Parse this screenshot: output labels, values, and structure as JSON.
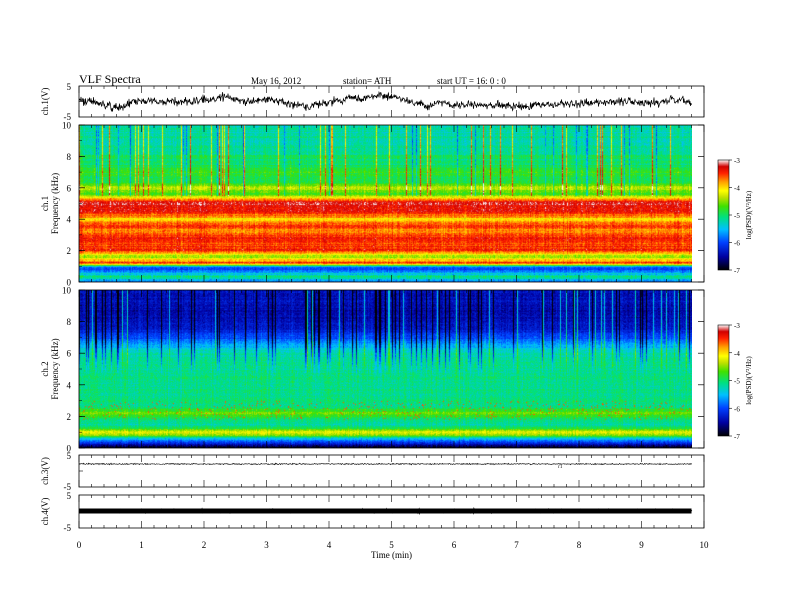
{
  "header": {
    "title": "VLF  Spectra",
    "date": "May 16, 2012",
    "station": "station= ATH",
    "start": "start  UT  =    16: 0  : 0"
  },
  "colors": {
    "colormap": [
      "#000000",
      "#0000a0",
      "#0040ff",
      "#00c0ff",
      "#00e080",
      "#40e000",
      "#c0e000",
      "#ffff00",
      "#ffa000",
      "#ff2000",
      "#d00000",
      "#ffffff"
    ],
    "trace": "#000000"
  },
  "chart_data": [
    {
      "type": "line",
      "name": "ch1-waveform",
      "ylabel": "ch.1(V)",
      "ylim": [
        -5,
        5
      ],
      "yticks": [
        "5",
        "-5"
      ]
    },
    {
      "type": "heatmap",
      "name": "ch1-spectrogram",
      "ylabel": "ch.1\nFrequency (kHz)",
      "ylim": [
        0,
        10
      ],
      "yticks": [
        "0",
        "2",
        "4",
        "6",
        "8",
        "10"
      ],
      "colorbar": {
        "label": "log(PSD)(V²/Hz)",
        "range": [
          -7,
          -3
        ],
        "ticks": [
          "-7",
          "-6",
          "-5",
          "-4",
          "-3"
        ]
      }
    },
    {
      "type": "heatmap",
      "name": "ch2-spectrogram",
      "ylabel": "ch.2\nFrequency (kHz)",
      "ylim": [
        0,
        10
      ],
      "yticks": [
        "0",
        "2",
        "4",
        "6",
        "8",
        "10"
      ],
      "colorbar": {
        "label": "log(PSD)(V²/Hz)",
        "range": [
          -7,
          -3
        ],
        "ticks": [
          "-7",
          "-6",
          "-5",
          "-4",
          "-3"
        ]
      }
    },
    {
      "type": "line",
      "name": "ch3-waveform",
      "ylabel": "ch.3(V)",
      "ylim": [
        -5,
        5
      ],
      "yticks": [
        "5",
        "-5"
      ]
    },
    {
      "type": "line",
      "name": "ch4-waveform",
      "ylabel": "ch.4(V)",
      "ylim": [
        -5,
        5
      ],
      "yticks": [
        "5",
        "-5"
      ]
    }
  ],
  "x_axis": {
    "label": "Time  (min)",
    "range": [
      0,
      10
    ],
    "ticks": [
      "0",
      "1",
      "2",
      "3",
      "4",
      "5",
      "6",
      "7",
      "8",
      "9",
      "10"
    ],
    "data_end": 9.8
  },
  "band_profiles": {
    "ch1": [
      [
        0.0,
        0.3
      ],
      [
        0.3,
        0.48
      ],
      [
        0.6,
        0.35
      ],
      [
        0.9,
        0.22
      ],
      [
        1.2,
        0.88
      ],
      [
        1.6,
        0.62
      ],
      [
        2.0,
        0.9
      ],
      [
        2.4,
        0.86
      ],
      [
        2.8,
        0.9
      ],
      [
        3.2,
        0.8
      ],
      [
        3.6,
        0.88
      ],
      [
        4.0,
        0.74
      ],
      [
        4.4,
        0.9
      ],
      [
        4.8,
        0.92
      ],
      [
        5.0,
        0.95
      ],
      [
        5.2,
        0.86
      ],
      [
        5.6,
        0.55
      ],
      [
        6.0,
        0.68
      ],
      [
        6.4,
        0.5
      ],
      [
        7.0,
        0.55
      ],
      [
        7.5,
        0.5
      ],
      [
        8.0,
        0.48
      ],
      [
        8.5,
        0.46
      ],
      [
        9.0,
        0.45
      ],
      [
        9.5,
        0.45
      ],
      [
        10.0,
        0.45
      ]
    ],
    "ch2": [
      [
        0.0,
        0.0
      ],
      [
        0.3,
        0.2
      ],
      [
        0.6,
        0.38
      ],
      [
        0.8,
        0.62
      ],
      [
        1.0,
        0.7
      ],
      [
        1.4,
        0.45
      ],
      [
        1.8,
        0.48
      ],
      [
        2.2,
        0.62
      ],
      [
        2.6,
        0.48
      ],
      [
        3.0,
        0.48
      ],
      [
        4.0,
        0.47
      ],
      [
        5.0,
        0.47
      ],
      [
        6.0,
        0.45
      ],
      [
        6.5,
        0.35
      ],
      [
        7.0,
        0.26
      ],
      [
        7.5,
        0.18
      ],
      [
        8.0,
        0.15
      ],
      [
        9.0,
        0.15
      ],
      [
        10.0,
        0.15
      ]
    ]
  }
}
